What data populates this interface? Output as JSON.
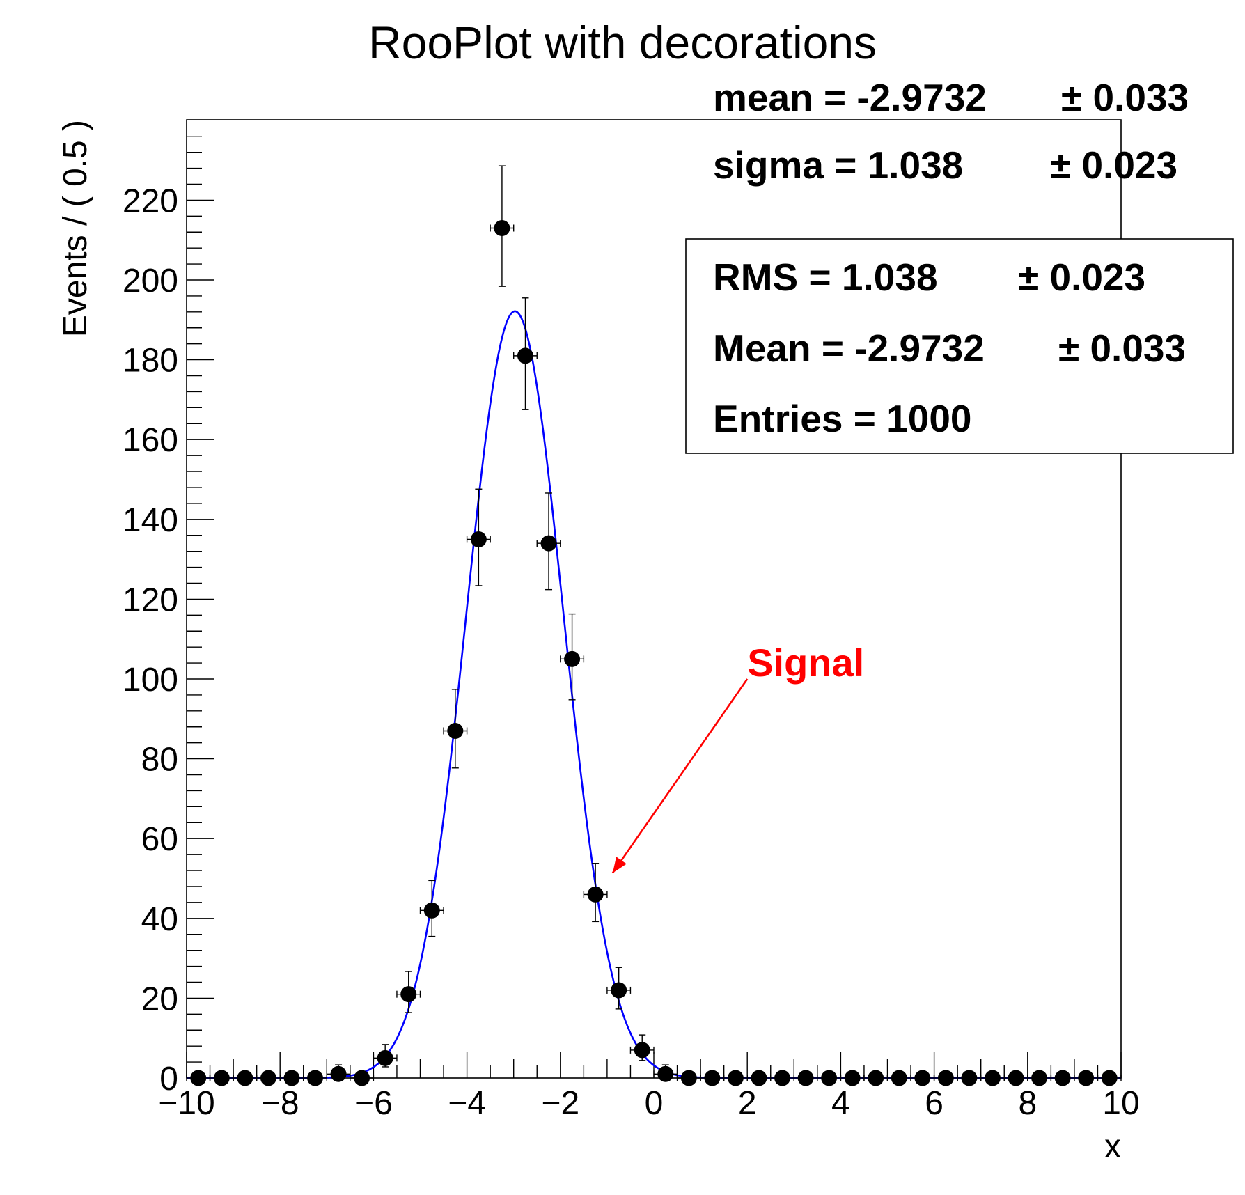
{
  "chart_data": {
    "type": "scatter",
    "title": "RooPlot with decorations",
    "xlabel": "x",
    "ylabel": "Events / ( 0.5 )",
    "xlim": [
      -10,
      10
    ],
    "ylim": [
      0,
      240
    ],
    "x_ticks": [
      -10,
      -8,
      -6,
      -4,
      -2,
      0,
      2,
      4,
      6,
      8,
      10
    ],
    "x_tick_labels": [
      "−10",
      "−8",
      "−6",
      "−4",
      "−2",
      "0",
      "2",
      "4",
      "6",
      "8",
      "10"
    ],
    "y_ticks": [
      0,
      20,
      40,
      60,
      80,
      100,
      120,
      140,
      160,
      180,
      200,
      220
    ],
    "y_tick_labels": [
      "0",
      "20",
      "40",
      "60",
      "80",
      "100",
      "120",
      "140",
      "160",
      "180",
      "200",
      "220"
    ],
    "grid": false,
    "bin_width": 0.5,
    "series": [
      {
        "type": "points_with_errors",
        "color": "#000000",
        "x": [
          -9.75,
          -9.25,
          -8.75,
          -8.25,
          -7.75,
          -7.25,
          -6.75,
          -6.25,
          -5.75,
          -5.25,
          -4.75,
          -4.25,
          -3.75,
          -3.25,
          -2.75,
          -2.25,
          -1.75,
          -1.25,
          -0.75,
          -0.25,
          0.25,
          0.75,
          1.25,
          1.75,
          2.25,
          2.75,
          3.25,
          3.75,
          4.25,
          4.75,
          5.25,
          5.75,
          6.25,
          6.75,
          7.25,
          7.75,
          8.25,
          8.75,
          9.25,
          9.75
        ],
        "y": [
          0,
          0,
          0,
          0,
          0,
          0,
          1,
          0,
          5,
          21,
          42,
          87,
          135,
          213,
          181,
          134,
          105,
          46,
          22,
          7,
          1,
          0,
          0,
          0,
          0,
          0,
          0,
          0,
          0,
          0,
          0,
          0,
          0,
          0,
          0,
          0,
          0,
          0,
          0,
          0
        ],
        "y_error_low": [
          0,
          0,
          0,
          0,
          0,
          0,
          0.8,
          0,
          2.2,
          4.6,
          6.5,
          9.3,
          11.6,
          14.6,
          13.5,
          11.6,
          10.2,
          6.8,
          4.7,
          2.6,
          0.8,
          0,
          0,
          0,
          0,
          0,
          0,
          0,
          0,
          0,
          0,
          0,
          0,
          0,
          0,
          0,
          0,
          0,
          0,
          0
        ],
        "y_error_high": [
          0,
          0,
          0,
          0,
          0,
          0,
          2.3,
          0,
          3.4,
          5.7,
          7.5,
          10.4,
          12.6,
          15.6,
          14.5,
          12.6,
          11.3,
          7.8,
          5.7,
          3.8,
          2.3,
          0,
          0,
          0,
          0,
          0,
          0,
          0,
          0,
          0,
          0,
          0,
          0,
          0,
          0,
          0,
          0,
          0,
          0,
          0
        ]
      },
      {
        "type": "curve",
        "color": "#0000ff",
        "model": "gaussian",
        "mean": -2.9732,
        "sigma": 1.038,
        "entries": 1000
      }
    ],
    "param_box": {
      "lines": [
        {
          "name": "mean",
          "text": "mean = -2.9732",
          "error": "± 0.033"
        },
        {
          "name": "sigma",
          "text": "sigma =  1.038",
          "error": "± 0.023"
        }
      ]
    },
    "stats_box": {
      "lines": [
        {
          "name": "rms",
          "text": "RMS =  1.038",
          "error": "± 0.023"
        },
        {
          "name": "mean",
          "text": "Mean = -2.9732",
          "error": "± 0.033"
        },
        {
          "name": "entries",
          "text": "Entries =  1000",
          "error": ""
        }
      ]
    },
    "annotation": {
      "text": "Signal",
      "color": "#ff0000",
      "arrow_from": [
        2.0,
        100
      ],
      "arrow_to": [
        -1.0,
        50
      ]
    }
  }
}
